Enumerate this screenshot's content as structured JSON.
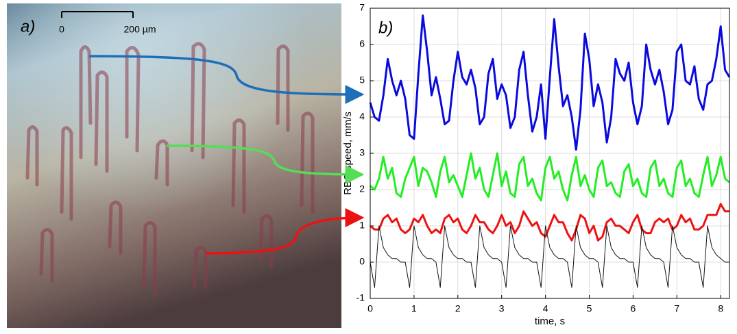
{
  "panel_a": {
    "label": "a)",
    "scale_start": "0",
    "scale_end": "200 µm"
  },
  "chart_data": {
    "type": "line",
    "panel_label": "b)",
    "ylabel": "RBC speed, mm/s",
    "xlabel": "time, s",
    "xlim": [
      0,
      8.2
    ],
    "ylim": [
      -1,
      7
    ],
    "xticks": [
      0,
      1,
      2,
      3,
      4,
      5,
      6,
      7,
      8
    ],
    "yticks": [
      -1,
      0,
      1,
      2,
      3,
      4,
      5,
      6,
      7
    ],
    "grid": true,
    "x": [
      0,
      0.1,
      0.2,
      0.3,
      0.4,
      0.5,
      0.6,
      0.7,
      0.8,
      0.9,
      1,
      1.1,
      1.2,
      1.3,
      1.4,
      1.5,
      1.6,
      1.7,
      1.8,
      1.9,
      2,
      2.1,
      2.2,
      2.3,
      2.4,
      2.5,
      2.6,
      2.7,
      2.8,
      2.9,
      3,
      3.1,
      3.2,
      3.3,
      3.4,
      3.5,
      3.6,
      3.7,
      3.8,
      3.9,
      4,
      4.1,
      4.2,
      4.3,
      4.4,
      4.5,
      4.6,
      4.7,
      4.8,
      4.9,
      5,
      5.1,
      5.2,
      5.3,
      5.4,
      5.5,
      5.6,
      5.7,
      5.8,
      5.9,
      6,
      6.1,
      6.2,
      6.3,
      6.4,
      6.5,
      6.6,
      6.7,
      6.8,
      6.9,
      7,
      7.1,
      7.2,
      7.3,
      7.4,
      7.5,
      7.6,
      7.7,
      7.8,
      7.9,
      8,
      8.1,
      8.2
    ],
    "series": [
      {
        "color": "#0a0ae0",
        "width": 3,
        "values": [
          4.4,
          4.0,
          3.9,
          4.6,
          5.6,
          5.0,
          4.6,
          5.0,
          4.5,
          3.5,
          3.4,
          5.2,
          6.8,
          5.8,
          4.6,
          5.1,
          4.5,
          3.8,
          3.9,
          5.0,
          5.8,
          5.1,
          4.9,
          5.3,
          4.8,
          3.8,
          4.0,
          5.2,
          5.6,
          4.5,
          4.9,
          4.6,
          3.7,
          4.0,
          5.3,
          5.8,
          4.6,
          3.6,
          4.0,
          4.9,
          3.4,
          5.1,
          6.7,
          5.4,
          4.3,
          4.6,
          4.0,
          3.1,
          4.2,
          6.3,
          5.6,
          4.3,
          4.9,
          4.4,
          3.3,
          4.0,
          5.6,
          5.2,
          5.0,
          5.5,
          4.4,
          3.8,
          4.3,
          6.0,
          5.3,
          4.9,
          5.3,
          4.7,
          3.8,
          4.2,
          5.8,
          6.0,
          5.0,
          4.9,
          5.4,
          4.5,
          4.2,
          4.9,
          5.0,
          5.6,
          6.5,
          5.3,
          5.1
        ]
      },
      {
        "color": "#22ee22",
        "width": 3,
        "values": [
          2.1,
          2.0,
          2.3,
          2.9,
          2.3,
          2.6,
          1.9,
          1.8,
          2.3,
          2.6,
          2.9,
          2.1,
          2.6,
          2.5,
          2.2,
          1.8,
          2.5,
          2.9,
          2.2,
          2.4,
          2.1,
          1.8,
          2.4,
          3.0,
          2.3,
          2.6,
          2.0,
          1.8,
          2.4,
          3.0,
          2.1,
          2.5,
          1.9,
          1.8,
          2.7,
          2.9,
          2.1,
          2.3,
          1.9,
          1.7,
          2.6,
          2.9,
          2.3,
          2.5,
          2.0,
          1.7,
          2.4,
          2.9,
          2.1,
          2.4,
          2.0,
          1.8,
          2.6,
          2.8,
          2.1,
          2.2,
          1.9,
          1.8,
          2.5,
          2.7,
          2.1,
          2.3,
          1.9,
          1.8,
          2.6,
          2.8,
          2.1,
          2.3,
          1.9,
          1.8,
          2.6,
          2.8,
          2.1,
          2.3,
          1.9,
          1.8,
          2.4,
          2.9,
          2.1,
          2.4,
          2.9,
          2.3,
          2.2
        ]
      },
      {
        "color": "#ee1111",
        "width": 3,
        "values": [
          1.0,
          0.9,
          0.9,
          1.2,
          1.3,
          1.1,
          1.2,
          0.9,
          0.8,
          0.9,
          1.2,
          1.1,
          1.3,
          1.0,
          0.8,
          0.9,
          0.8,
          1.2,
          1.3,
          1.1,
          1.2,
          0.9,
          0.8,
          1.0,
          1.3,
          1.1,
          1.1,
          0.9,
          0.8,
          1.0,
          1.3,
          1.0,
          1.1,
          0.8,
          1.0,
          1.4,
          1.2,
          1.0,
          1.1,
          0.8,
          0.7,
          1.0,
          1.3,
          1.1,
          1.1,
          0.8,
          0.6,
          0.9,
          1.3,
          1.2,
          0.8,
          1.0,
          0.6,
          0.7,
          1.1,
          1.2,
          1.0,
          1.0,
          0.9,
          0.8,
          1.1,
          1.3,
          0.9,
          0.8,
          0.8,
          1.1,
          1.2,
          1.1,
          1.2,
          0.9,
          1.0,
          1.3,
          1.1,
          1.2,
          0.9,
          0.9,
          1.0,
          1.3,
          1.3,
          1.3,
          1.6,
          1.4,
          1.4
        ]
      },
      {
        "color": "#111111",
        "width": 1,
        "values": [
          0.0,
          -0.7,
          1.0,
          0.4,
          0.2,
          0.1,
          0.1,
          0.0,
          0.0,
          -0.7,
          1.0,
          0.4,
          0.2,
          0.1,
          0.1,
          0.0,
          -0.7,
          1.0,
          0.4,
          0.2,
          0.1,
          0.1,
          0.0,
          0.0,
          -0.7,
          1.0,
          0.4,
          0.2,
          0.1,
          0.1,
          0.0,
          -0.7,
          1.0,
          0.4,
          0.2,
          0.1,
          0.1,
          0.0,
          0.0,
          -0.7,
          1.0,
          0.4,
          0.2,
          0.1,
          0.1,
          0.0,
          -0.7,
          1.0,
          0.4,
          0.2,
          0.1,
          0.1,
          0.0,
          -0.7,
          1.0,
          0.4,
          0.2,
          0.1,
          0.1,
          0.0,
          0.0,
          -0.7,
          1.0,
          0.4,
          0.2,
          0.1,
          0.1,
          0.0,
          -0.7,
          1.0,
          0.4,
          0.2,
          0.1,
          0.1,
          0.0,
          0.0,
          -0.7,
          1.0,
          0.4,
          0.2,
          0.1,
          0.0,
          0.0
        ]
      }
    ]
  }
}
